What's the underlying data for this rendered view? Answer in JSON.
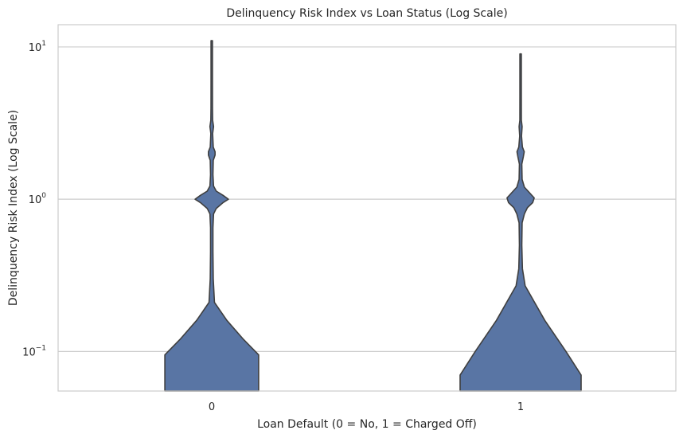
{
  "chart_data": {
    "type": "violin",
    "title": "Delinquency Risk Index vs Loan Status (Log Scale)",
    "xlabel": "Loan Default (0 = No, 1 = Charged Off)",
    "ylabel": "Delinquency Risk Index (Log Scale)",
    "yscale": "log",
    "ylim": [
      0.055,
      14
    ],
    "grid": true,
    "color": "#5975a4",
    "outline_color": "#3f3f3f",
    "categories": [
      "0",
      "1"
    ],
    "y_ticks": [
      {
        "value": 0.1,
        "base": "10",
        "exp": "−1"
      },
      {
        "value": 1,
        "base": "10",
        "exp": "0"
      },
      {
        "value": 10,
        "base": "10",
        "exp": "1"
      }
    ],
    "violins": [
      {
        "category": "0",
        "max": 11,
        "density": [
          [
            0.055,
            0.31
          ],
          [
            0.095,
            0.31
          ],
          [
            0.12,
            0.21
          ],
          [
            0.16,
            0.1
          ],
          [
            0.21,
            0.018
          ],
          [
            0.3,
            0.01
          ],
          [
            0.45,
            0.008
          ],
          [
            0.65,
            0.008
          ],
          [
            0.8,
            0.012
          ],
          [
            0.87,
            0.03
          ],
          [
            0.95,
            0.075
          ],
          [
            1.0,
            0.11
          ],
          [
            1.06,
            0.075
          ],
          [
            1.13,
            0.03
          ],
          [
            1.22,
            0.012
          ],
          [
            1.45,
            0.008
          ],
          [
            1.8,
            0.01
          ],
          [
            1.95,
            0.022
          ],
          [
            2.05,
            0.022
          ],
          [
            2.2,
            0.01
          ],
          [
            2.7,
            0.006
          ],
          [
            3.0,
            0.012
          ],
          [
            3.3,
            0.006
          ],
          [
            4.0,
            0.005
          ],
          [
            6.0,
            0.004
          ],
          [
            11,
            0.003
          ]
        ]
      },
      {
        "category": "1",
        "max": 9,
        "density": [
          [
            0.055,
            0.4
          ],
          [
            0.07,
            0.4
          ],
          [
            0.1,
            0.3
          ],
          [
            0.16,
            0.16
          ],
          [
            0.27,
            0.03
          ],
          [
            0.35,
            0.012
          ],
          [
            0.5,
            0.008
          ],
          [
            0.7,
            0.01
          ],
          [
            0.8,
            0.025
          ],
          [
            0.88,
            0.045
          ],
          [
            0.95,
            0.08
          ],
          [
            1.02,
            0.09
          ],
          [
            1.1,
            0.06
          ],
          [
            1.2,
            0.025
          ],
          [
            1.35,
            0.01
          ],
          [
            1.7,
            0.008
          ],
          [
            1.9,
            0.018
          ],
          [
            2.05,
            0.024
          ],
          [
            2.2,
            0.012
          ],
          [
            2.6,
            0.006
          ],
          [
            3.0,
            0.01
          ],
          [
            3.3,
            0.005
          ],
          [
            5.0,
            0.004
          ],
          [
            9,
            0.003
          ]
        ]
      }
    ]
  }
}
